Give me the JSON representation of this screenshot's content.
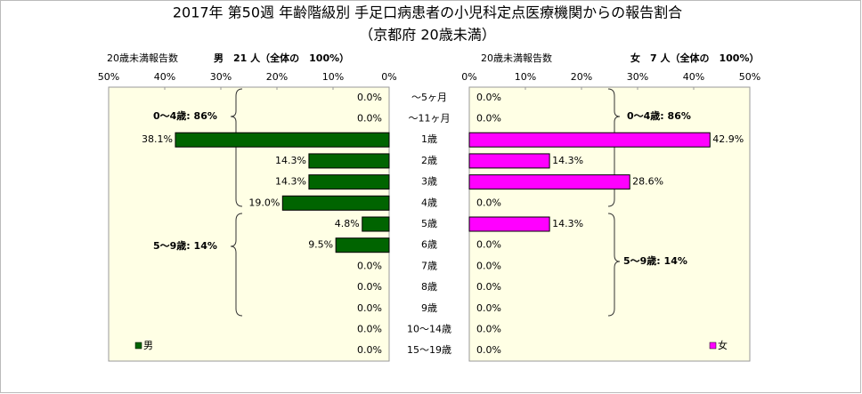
{
  "chart_data": {
    "type": "butterfly",
    "title": "2017年 第50週 年齢階級別 手足口病患者の小児科定点医療機関からの報告割合",
    "subtitle": "（京都府 20歳未満）",
    "categories": [
      "～5ヶ月",
      "～11ヶ月",
      "1歳",
      "2歳",
      "3歳",
      "4歳",
      "5歳",
      "6歳",
      "7歳",
      "8歳",
      "9歳",
      "10～14歳",
      "15～19歳"
    ],
    "xlim": [
      0,
      50
    ],
    "xticks": [
      {
        "value": 0,
        "label": "0%"
      },
      {
        "value": 10,
        "label": "10%"
      },
      {
        "value": 20,
        "label": "20%"
      },
      {
        "value": 30,
        "label": "30%"
      },
      {
        "value": 40,
        "label": "40%"
      },
      {
        "value": 50,
        "label": "50%"
      }
    ],
    "series": [
      {
        "name": "男",
        "color": "#006400",
        "side": "left",
        "header_label": "20歳未満報告数",
        "header": "男　21 人（全体の　100%）",
        "values": [
          0,
          0,
          38.1,
          14.3,
          14.3,
          19.0,
          4.8,
          9.5,
          0,
          0,
          0,
          0,
          0
        ],
        "value_labels": [
          "0.0%",
          "0.0%",
          "38.1%",
          "14.3%",
          "14.3%",
          "19.0%",
          "4.8%",
          "9.5%",
          "0.0%",
          "0.0%",
          "0.0%",
          "0.0%",
          "0.0%"
        ],
        "annotations": [
          "0～4歳: 86%",
          "5～9歳: 14%"
        ]
      },
      {
        "name": "女",
        "color": "#FF00FF",
        "side": "right",
        "header_label": "20歳未満報告数",
        "header": "女　7 人（全体の　100%）",
        "values": [
          0,
          0,
          42.9,
          14.3,
          28.6,
          0,
          14.3,
          0,
          0,
          0,
          0,
          0,
          0
        ],
        "value_labels": [
          "0.0%",
          "0.0%",
          "42.9%",
          "14.3%",
          "28.6%",
          "0.0%",
          "14.3%",
          "0.0%",
          "0.0%",
          "0.0%",
          "0.0%",
          "0.0%",
          "0.0%"
        ],
        "annotations": [
          "0～4歳: 86%",
          "5～9歳: 14%"
        ]
      }
    ]
  }
}
